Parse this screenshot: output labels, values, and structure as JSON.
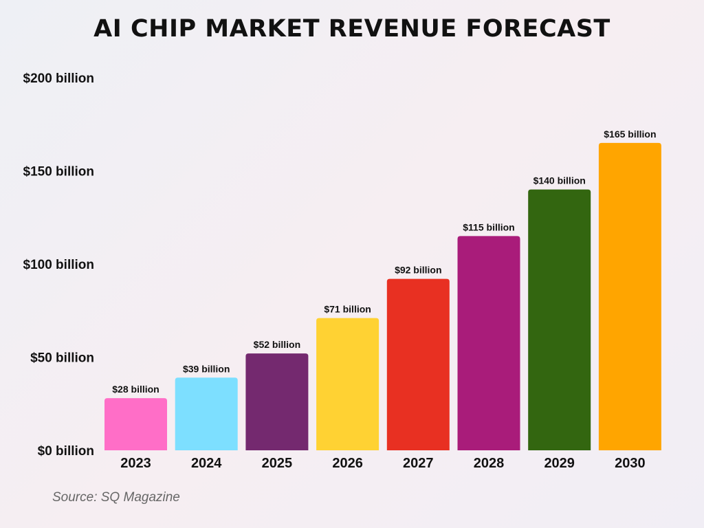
{
  "chart_data": {
    "type": "bar",
    "title": "AI CHIP MARKET REVENUE FORECAST",
    "categories": [
      "2023",
      "2024",
      "2025",
      "2026",
      "2027",
      "2028",
      "2029",
      "2030"
    ],
    "values": [
      28,
      39,
      52,
      71,
      92,
      115,
      140,
      165
    ],
    "data_labels": [
      "$28 billion",
      "$39 billion",
      "$52 billion",
      "$71 billion",
      "$92 billion",
      "$115 billion",
      "$140 billion",
      "$165 billion"
    ],
    "colors": [
      "#ff6ec7",
      "#7ddfff",
      "#74296f",
      "#ffd233",
      "#e83022",
      "#a91c7a",
      "#336610",
      "#ffa500"
    ],
    "yticks": [
      0,
      50,
      100,
      150,
      200
    ],
    "ytick_labels": [
      "$0 billion",
      "$50 billion",
      "$100 billion",
      "$150 billion",
      "$200 billion"
    ],
    "ylim": [
      0,
      200
    ],
    "xlabel": "",
    "ylabel": "",
    "grid": false,
    "legend": "none"
  },
  "source": "Source: SQ Magazine"
}
